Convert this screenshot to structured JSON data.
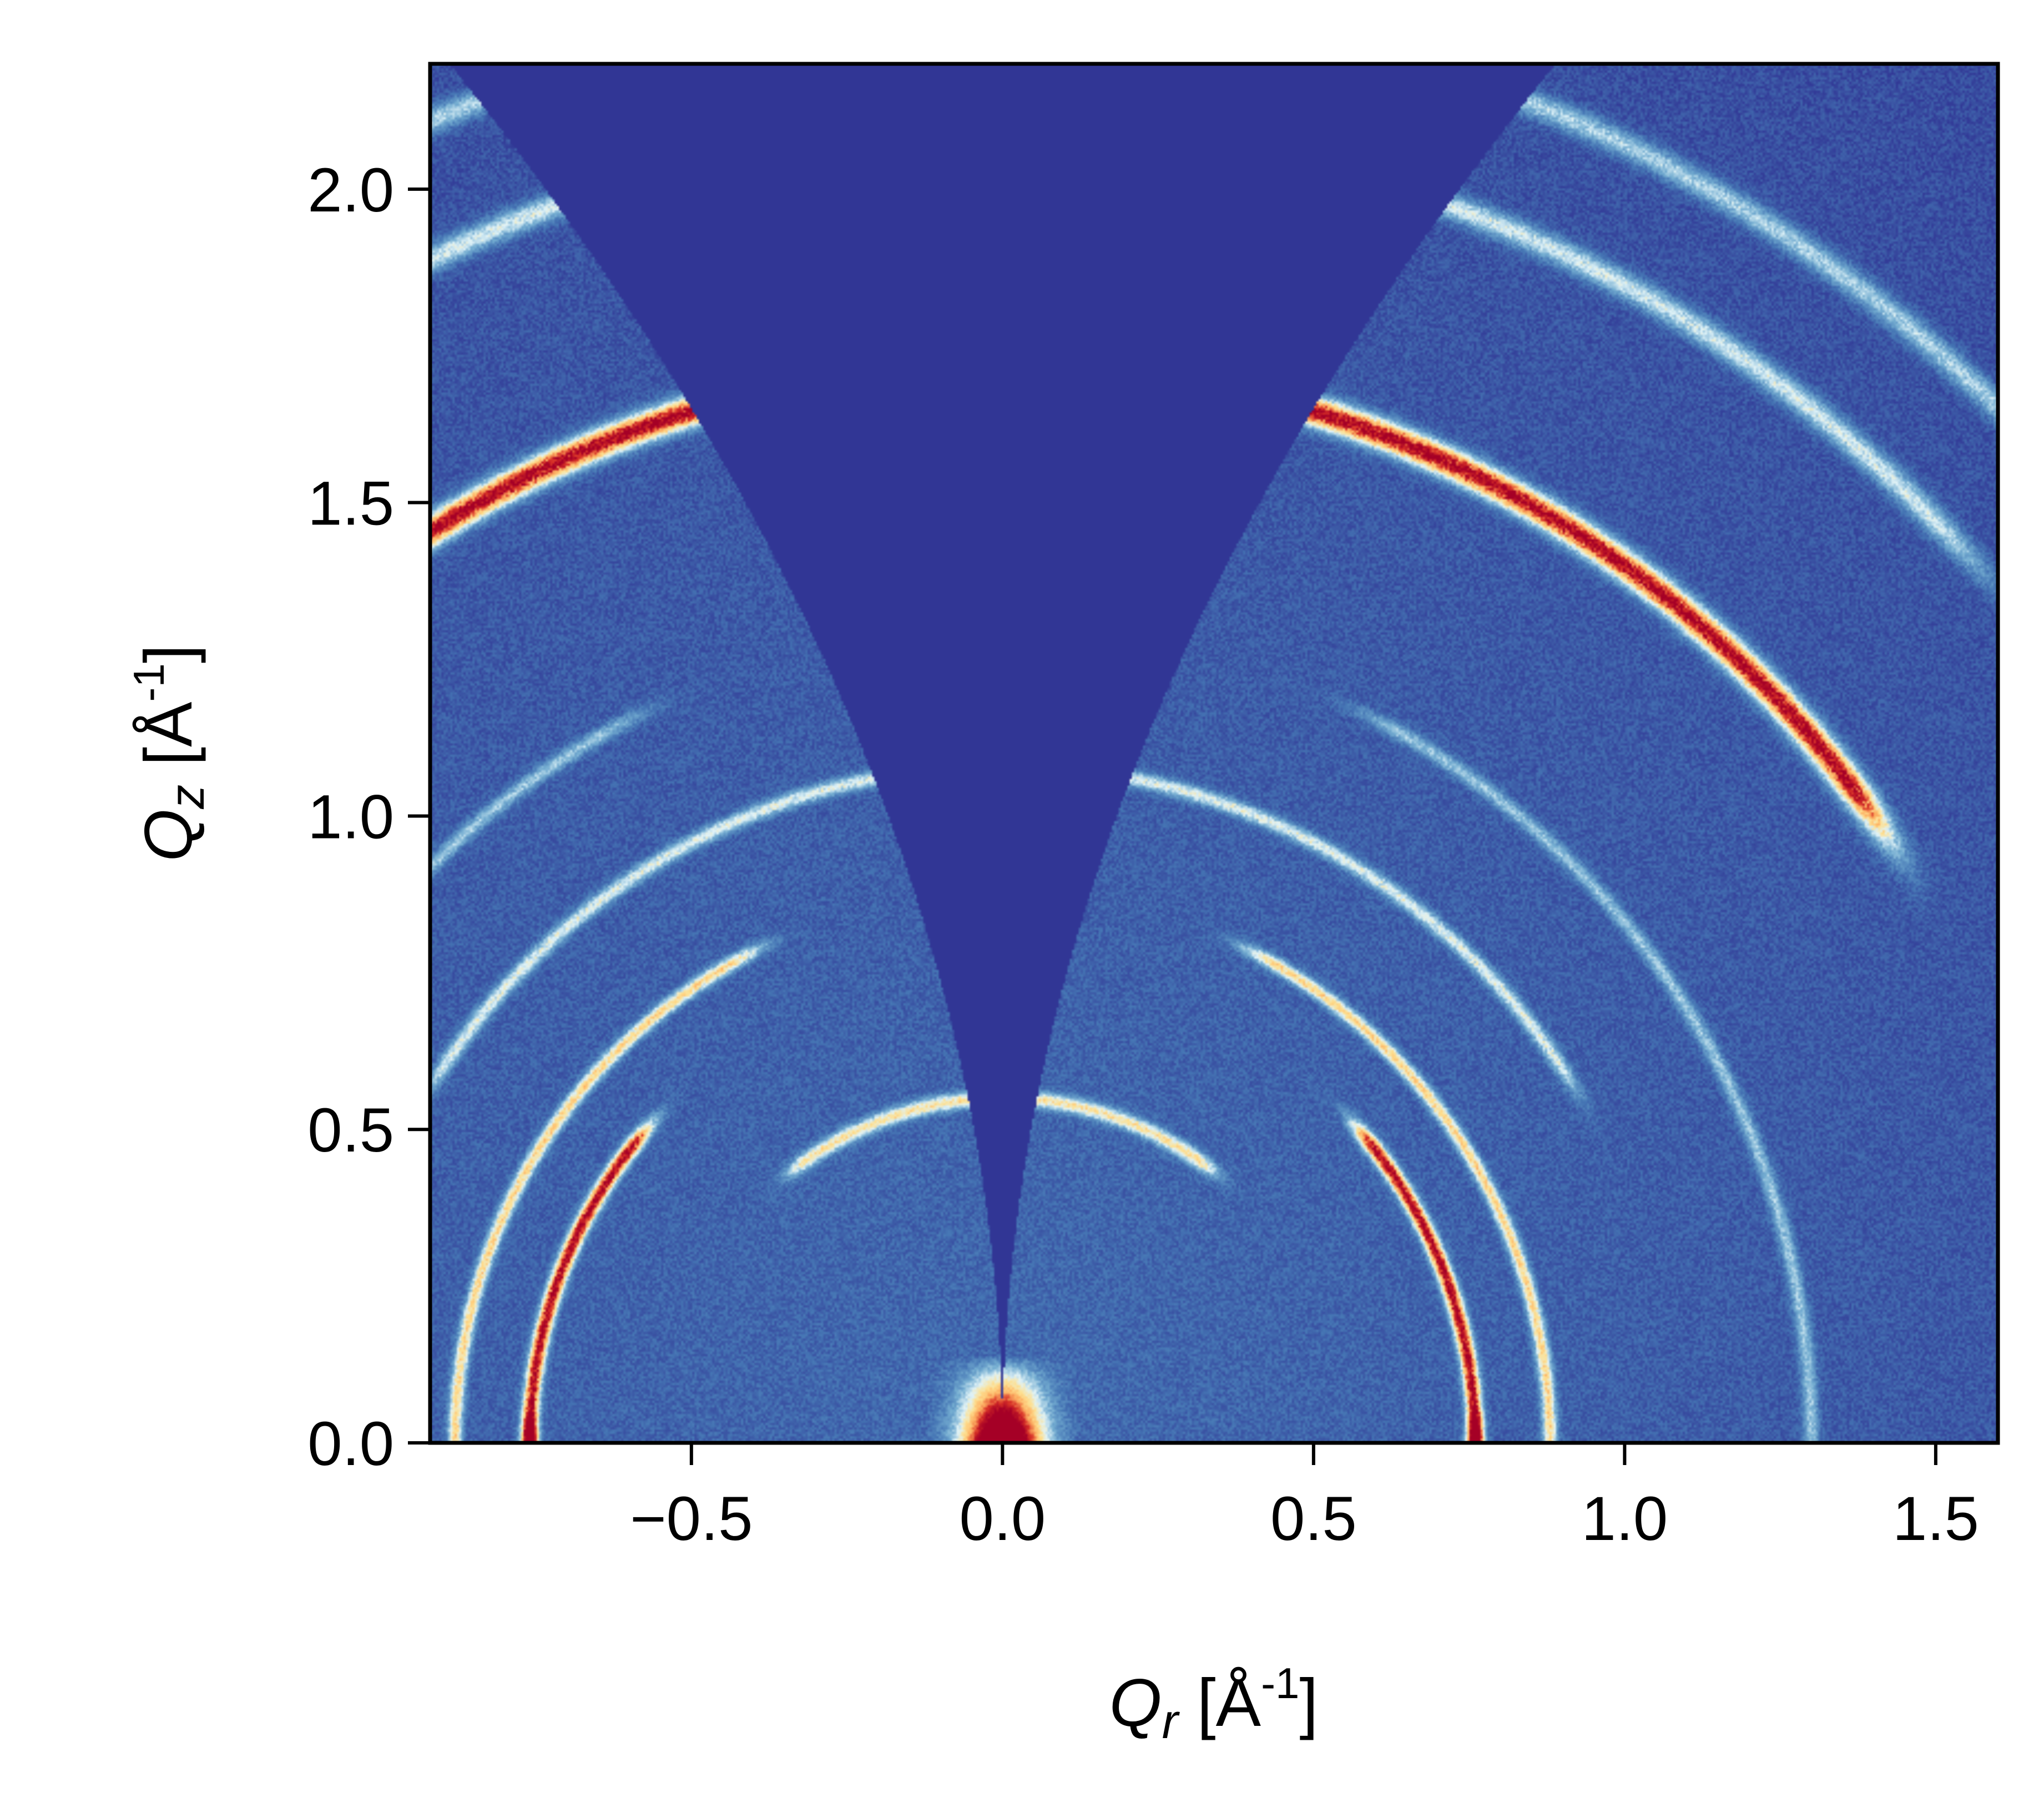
{
  "chart_data": {
    "type": "heatmap",
    "description_kind": "grazing-incidence wide-angle scattering map",
    "title": "",
    "xlabel": {
      "symbol": "Q",
      "subscript": "r",
      "unit_pre": " [Å",
      "unit_sup": "-1",
      "unit_post": "]"
    },
    "ylabel": {
      "symbol": "Q",
      "subscript": "z",
      "unit_pre": " [Å",
      "unit_sup": "-1",
      "unit_post": "]"
    },
    "xlim": [
      -0.92,
      1.6
    ],
    "ylim": [
      0.0,
      2.2
    ],
    "xticks": [
      {
        "value": -0.5,
        "label": "−0.5"
      },
      {
        "value": 0.0,
        "label": "0.0"
      },
      {
        "value": 0.5,
        "label": "0.5"
      },
      {
        "value": 1.0,
        "label": "1.0"
      },
      {
        "value": 1.5,
        "label": "1.5"
      }
    ],
    "yticks": [
      {
        "value": 0.0,
        "label": "0.0"
      },
      {
        "value": 0.5,
        "label": "0.5"
      },
      {
        "value": 1.0,
        "label": "1.0"
      },
      {
        "value": 1.5,
        "label": "1.5"
      },
      {
        "value": 2.0,
        "label": "2.0"
      }
    ],
    "grid": false,
    "colormap": [
      "#313695",
      "#4575b4",
      "#74add1",
      "#e0f3f8",
      "#fee090",
      "#fdae61",
      "#d73027",
      "#a50026"
    ],
    "background_color": "#313695",
    "rings": [
      {
        "q": 0.55,
        "intensity": 0.45,
        "width": 0.012,
        "chi_min": 0,
        "chi_max": 35
      },
      {
        "q": 0.76,
        "intensity": 0.9,
        "width": 0.012,
        "chi_min": 52,
        "chi_max": 90
      },
      {
        "q": 0.88,
        "intensity": 0.5,
        "width": 0.011,
        "chi_min": 30,
        "chi_max": 90
      },
      {
        "q": 1.08,
        "intensity": 0.35,
        "width": 0.012,
        "chi_min": 0,
        "chi_max": 55
      },
      {
        "q": 1.3,
        "intensity": 0.25,
        "width": 0.012,
        "chi_min": 30,
        "chi_max": 90
      },
      {
        "q": 1.72,
        "intensity": 0.92,
        "width": 0.022,
        "chi_min": 0,
        "chi_max": 52
      },
      {
        "q": 2.1,
        "intensity": 0.35,
        "width": 0.02,
        "chi_min": 0,
        "chi_max": 45
      },
      {
        "q": 2.3,
        "intensity": 0.3,
        "width": 0.02,
        "chi_min": 0,
        "chi_max": 45
      }
    ],
    "missing_wedge_half_angle_at_top_deg": 22,
    "beamstop_peak": {
      "q_r": 0.0,
      "q_z_max": 0.14,
      "half_width": 0.06
    }
  }
}
